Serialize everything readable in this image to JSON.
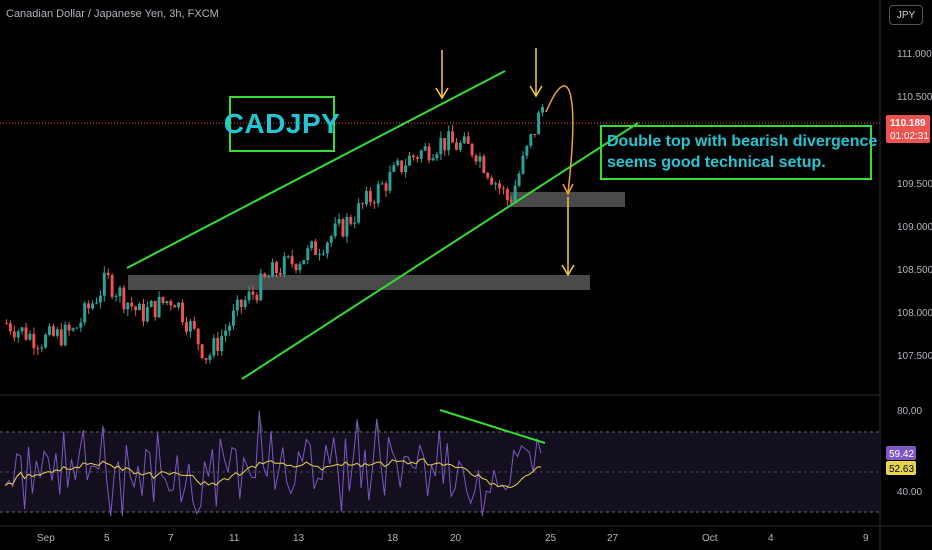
{
  "header": {
    "symbol_title": "Canadian Dollar / Japanese Yen, 3h, FXCM",
    "currency_button": "JPY"
  },
  "annotations": {
    "ticker_box": "CADJPY",
    "note_line1": "Double top with bearish divergence",
    "note_line2": "seems good technical setup."
  },
  "price_axis": {
    "ticks": [
      "111.000",
      "110.500",
      "109.500",
      "109.000",
      "108.500",
      "108.000",
      "107.500"
    ],
    "last_price": "110.189",
    "countdown": "01:02:31"
  },
  "rsi_axis": {
    "ticks": [
      "80.00",
      "40.00"
    ],
    "rsi_value": "59.42",
    "rsi_ma_value": "52.63"
  },
  "time_axis": {
    "ticks": [
      "Sep",
      "5",
      "7",
      "11",
      "13",
      "18",
      "20",
      "25",
      "27",
      "Oct",
      "4",
      "9"
    ]
  },
  "colors": {
    "up": "#26a69a",
    "down": "#ef5350",
    "trendline": "#33dd33",
    "arrow": "#f7c948",
    "curve": "#f0a030",
    "rsi": "#7e57c2",
    "rsi_ma": "#e8d44d",
    "zone": "#4a4a4a"
  },
  "chart_data": {
    "type": "candlestick",
    "title": "Canadian Dollar / Japanese Yen, 3h, FXCM",
    "ylim": [
      107.2,
      111.3
    ],
    "close_path": [
      [
        "2023-08-31",
        107.9
      ],
      [
        "2023-09-04",
        107.7
      ],
      [
        "2023-09-05",
        107.8
      ],
      [
        "2023-09-06",
        108.4
      ],
      [
        "2023-09-07",
        108.0
      ],
      [
        "2023-09-08",
        108.2
      ],
      [
        "2023-09-11",
        107.5
      ],
      [
        "2023-09-12",
        108.1
      ],
      [
        "2023-09-13",
        108.5
      ],
      [
        "2023-09-14",
        108.7
      ],
      [
        "2023-09-15",
        109.0
      ],
      [
        "2023-09-18",
        109.4
      ],
      [
        "2023-09-19",
        109.8
      ],
      [
        "2023-09-20",
        110.0
      ],
      [
        "2023-09-21",
        109.9
      ],
      [
        "2023-09-22",
        109.3
      ],
      [
        "2023-09-25",
        110.4
      ]
    ],
    "last_price": 110.189,
    "rsi": {
      "ylim": [
        30,
        85
      ],
      "levels": [
        70,
        50,
        30
      ],
      "last_value": 59.42,
      "ma_last_value": 52.63
    },
    "zones": [
      {
        "from": 108.32,
        "to": 108.48
      },
      {
        "from": 109.25,
        "to": 109.42
      }
    ]
  }
}
